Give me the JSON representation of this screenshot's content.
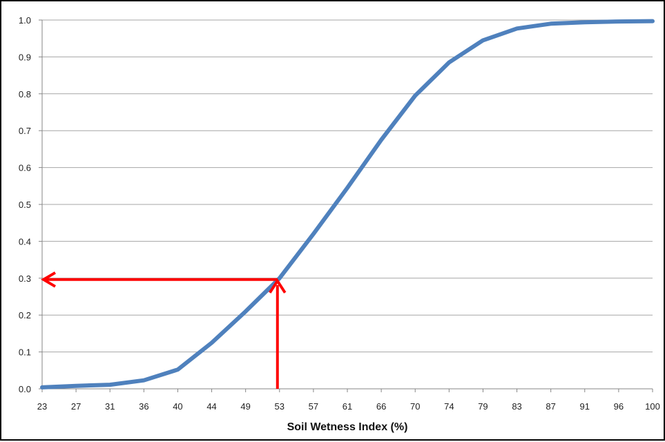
{
  "chart_data": {
    "type": "line",
    "title": "",
    "xlabel": "Soil Wetness Index (%)",
    "ylabel": "",
    "x": [
      "23",
      "27",
      "31",
      "36",
      "40",
      "44",
      "49",
      "53",
      "57",
      "61",
      "66",
      "70",
      "74",
      "79",
      "83",
      "87",
      "91",
      "96",
      "100"
    ],
    "series": [
      {
        "values": [
          0.004,
          0.008,
          0.011,
          0.023,
          0.052,
          0.125,
          0.21,
          0.3,
          0.42,
          0.545,
          0.675,
          0.795,
          0.885,
          0.945,
          0.977,
          0.99,
          0.994,
          0.996,
          0.997
        ]
      }
    ],
    "ylim": [
      0,
      1.0
    ],
    "yticks": [
      "0.0",
      "0.1",
      "0.2",
      "0.3",
      "0.4",
      "0.5",
      "0.6",
      "0.7",
      "0.8",
      "0.9",
      "1.0"
    ],
    "grid": true,
    "legend": "none",
    "annotations": [
      {
        "type": "arrow",
        "description": "vertical arrow from x-axis up to curve",
        "x": "53",
        "y_from": 0,
        "y_to": 0.3,
        "color": "#ff0000"
      },
      {
        "type": "arrow",
        "description": "horizontal arrow from curve to y-axis",
        "y": 0.3,
        "x_from": "53",
        "x_to": "23",
        "color": "#ff0000"
      }
    ],
    "colors": {
      "series": "#4f81bd",
      "annotation": "#ff0000",
      "grid": "#a6a6a6"
    }
  }
}
